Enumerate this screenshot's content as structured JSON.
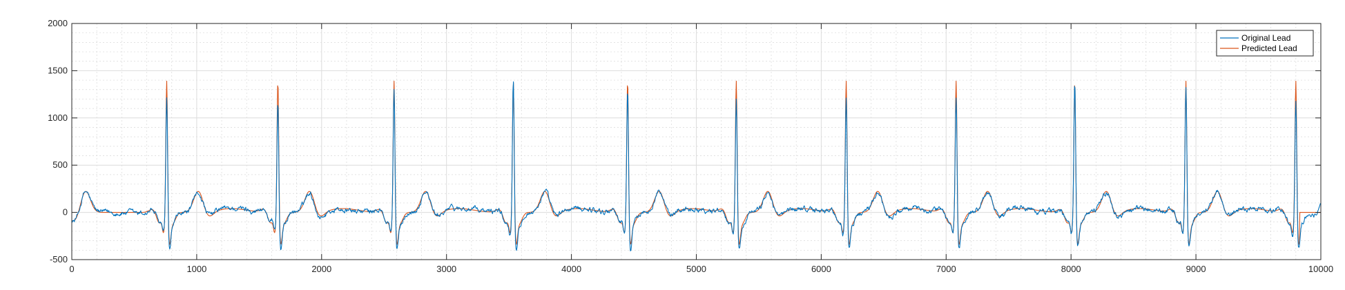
{
  "chart_data": {
    "type": "line",
    "title": "",
    "xlabel": "",
    "ylabel": "",
    "xlim": [
      0,
      10000
    ],
    "ylim": [
      -500,
      2000
    ],
    "xticks": [
      0,
      1000,
      2000,
      3000,
      4000,
      5000,
      6000,
      7000,
      8000,
      9000,
      10000
    ],
    "yticks": [
      -500,
      0,
      500,
      1000,
      1500,
      2000
    ],
    "xtick_labels": [
      "0",
      "1000",
      "2000",
      "3000",
      "4000",
      "5000",
      "6000",
      "7000",
      "8000",
      "9000",
      "10000"
    ],
    "ytick_labels": [
      "-500",
      "0",
      "500",
      "1000",
      "1500",
      "2000"
    ],
    "grid": true,
    "minor_grid": true,
    "legend_position": "top-right",
    "series": [
      {
        "name": "Original Lead",
        "color": "#0072BD",
        "r_peaks": [
          760,
          1650,
          2580,
          3535,
          4450,
          5320,
          6200,
          7080,
          8030,
          8920,
          9800
        ],
        "r_peak_heights": [
          1270,
          1250,
          1350,
          1520,
          1380,
          1270,
          1300,
          1300,
          1450,
          1380,
          1270
        ],
        "t_wave_peak": 220,
        "s_wave_min": -420,
        "baseline": 0
      },
      {
        "name": "Predicted Lead",
        "color": "#D95319",
        "r_peaks": [
          760,
          1650,
          2580,
          3535,
          4450,
          5320,
          6200,
          7080,
          8030,
          8920,
          9800
        ],
        "r_peak_heights": [
          1460,
          1460,
          1460,
          1460,
          1460,
          1460,
          1460,
          1460,
          1460,
          1460,
          1460
        ],
        "t_wave_peak": 230,
        "s_wave_min": -350,
        "baseline": 0,
        "flat_after": 9830
      }
    ]
  }
}
